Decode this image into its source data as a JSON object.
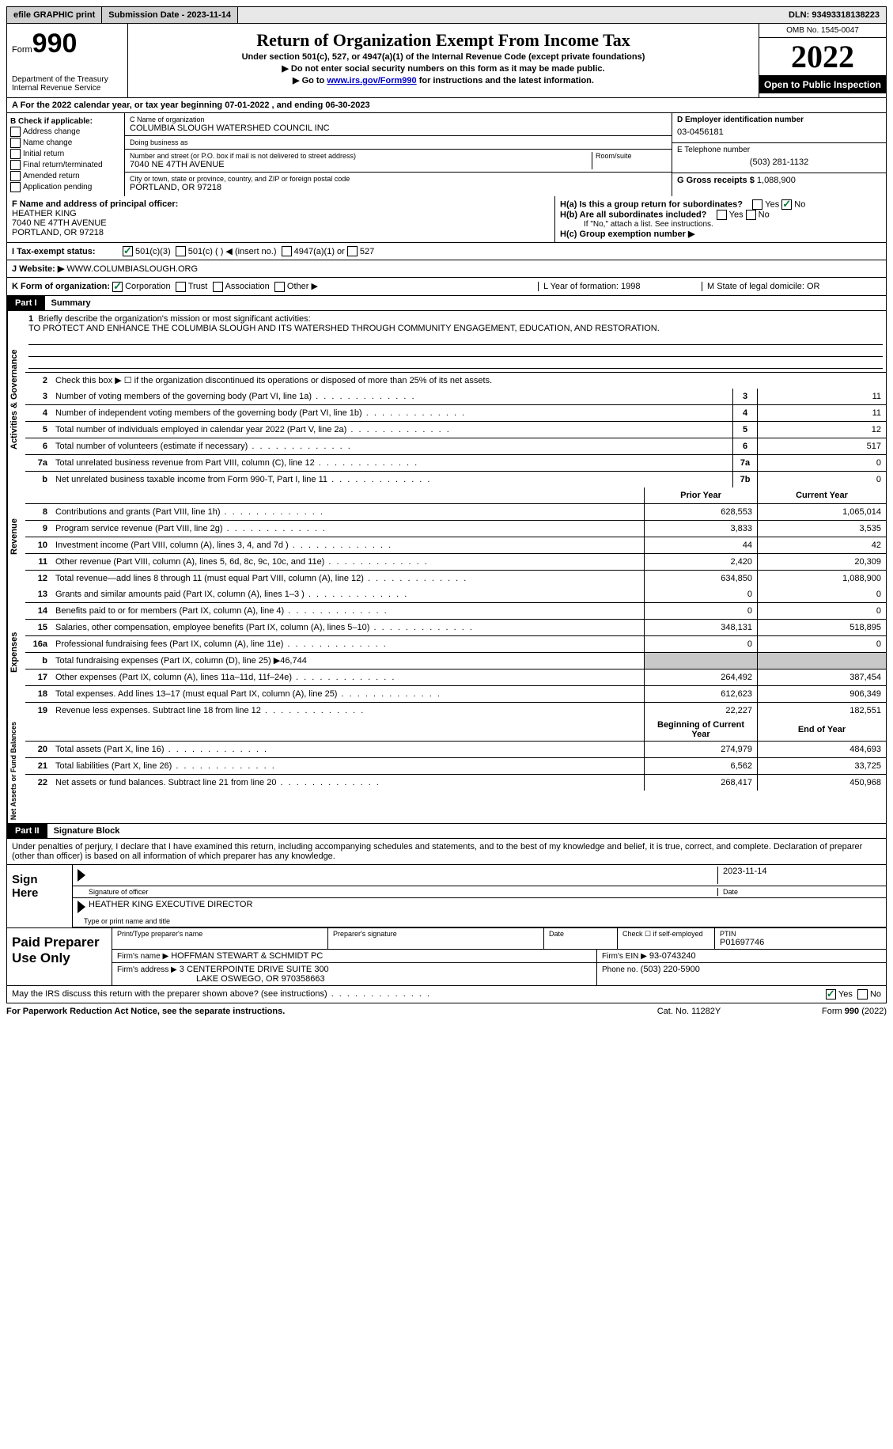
{
  "top": {
    "efile": "efile GRAPHIC print",
    "submission": "Submission Date - 2023-11-14",
    "dln": "DLN: 93493318138223"
  },
  "header": {
    "form": "Form",
    "number": "990",
    "dept": "Department of the Treasury\nInternal Revenue Service",
    "title": "Return of Organization Exempt From Income Tax",
    "subtitle": "Under section 501(c), 527, or 4947(a)(1) of the Internal Revenue Code (except private foundations)",
    "line1": "▶ Do not enter social security numbers on this form as it may be made public.",
    "line2_pre": "▶ Go to ",
    "line2_link": "www.irs.gov/Form990",
    "line2_post": " for instructions and the latest information.",
    "omb": "OMB No. 1545-0047",
    "year": "2022",
    "open": "Open to Public Inspection"
  },
  "lineA": "A  For the 2022 calendar year, or tax year beginning 07-01-2022    , and ending 06-30-2023",
  "b": {
    "label": "B Check if applicable:",
    "opts": [
      "Address change",
      "Name change",
      "Initial return",
      "Final return/terminated",
      "Amended return",
      "Application pending"
    ]
  },
  "c": {
    "name_label": "C Name of organization",
    "name": "COLUMBIA SLOUGH WATERSHED COUNCIL INC",
    "dba_label": "Doing business as",
    "dba": "",
    "street_label": "Number and street (or P.O. box if mail is not delivered to street address)",
    "room_label": "Room/suite",
    "street": "7040 NE 47TH AVENUE",
    "city_label": "City or town, state or province, country, and ZIP or foreign postal code",
    "city": "PORTLAND, OR  97218"
  },
  "d": {
    "ein_label": "D Employer identification number",
    "ein": "03-0456181",
    "phone_label": "E Telephone number",
    "phone": "(503) 281-1132",
    "gross_label": "G Gross receipts $",
    "gross": "1,088,900"
  },
  "f": {
    "label": "F Name and address of principal officer:",
    "name": "HEATHER KING",
    "addr1": "7040 NE 47TH AVENUE",
    "addr2": "PORTLAND, OR  97218"
  },
  "h": {
    "a": "H(a)  Is this a group return for subordinates?",
    "a_no": true,
    "b": "H(b)  Are all subordinates included?",
    "b_note": "If \"No,\" attach a list. See instructions.",
    "c": "H(c)  Group exemption number ▶"
  },
  "i": {
    "label": "I   Tax-exempt status:",
    "c3": "501(c)(3)",
    "c": "501(c) (  ) ◀ (insert no.)",
    "a1": "4947(a)(1) or",
    "s527": "527"
  },
  "j": {
    "label": "J   Website: ▶",
    "val": "WWW.COLUMBIASLOUGH.ORG"
  },
  "k": {
    "label": "K Form of organization:",
    "corp": "Corporation",
    "trust": "Trust",
    "assoc": "Association",
    "other": "Other ▶",
    "l": "L Year of formation: 1998",
    "m": "M State of legal domicile: OR"
  },
  "part1": {
    "header": "Part I",
    "title": "Summary",
    "q1": "Briefly describe the organization's mission or most significant activities:",
    "mission": "TO PROTECT AND ENHANCE THE COLUMBIA SLOUGH AND ITS WATERSHED THROUGH COMMUNITY ENGAGEMENT, EDUCATION, AND RESTORATION.",
    "q2": "Check this box ▶ ☐ if the organization discontinued its operations or disposed of more than 25% of its net assets.",
    "lines_single": [
      {
        "n": "3",
        "d": "Number of voting members of the governing body (Part VI, line 1a)",
        "box": "3",
        "v": "11"
      },
      {
        "n": "4",
        "d": "Number of independent voting members of the governing body (Part VI, line 1b)",
        "box": "4",
        "v": "11"
      },
      {
        "n": "5",
        "d": "Total number of individuals employed in calendar year 2022 (Part V, line 2a)",
        "box": "5",
        "v": "12"
      },
      {
        "n": "6",
        "d": "Total number of volunteers (estimate if necessary)",
        "box": "6",
        "v": "517"
      },
      {
        "n": "7a",
        "d": "Total unrelated business revenue from Part VIII, column (C), line 12",
        "box": "7a",
        "v": "0"
      },
      {
        "n": "b",
        "d": "Net unrelated business taxable income from Form 990-T, Part I, line 11",
        "box": "7b",
        "v": "0"
      }
    ],
    "col_prior": "Prior Year",
    "col_current": "Current Year",
    "revenue": [
      {
        "n": "8",
        "d": "Contributions and grants (Part VIII, line 1h)",
        "p": "628,553",
        "c": "1,065,014"
      },
      {
        "n": "9",
        "d": "Program service revenue (Part VIII, line 2g)",
        "p": "3,833",
        "c": "3,535"
      },
      {
        "n": "10",
        "d": "Investment income (Part VIII, column (A), lines 3, 4, and 7d )",
        "p": "44",
        "c": "42"
      },
      {
        "n": "11",
        "d": "Other revenue (Part VIII, column (A), lines 5, 6d, 8c, 9c, 10c, and 11e)",
        "p": "2,420",
        "c": "20,309"
      },
      {
        "n": "12",
        "d": "Total revenue—add lines 8 through 11 (must equal Part VIII, column (A), line 12)",
        "p": "634,850",
        "c": "1,088,900"
      }
    ],
    "expenses": [
      {
        "n": "13",
        "d": "Grants and similar amounts paid (Part IX, column (A), lines 1–3 )",
        "p": "0",
        "c": "0"
      },
      {
        "n": "14",
        "d": "Benefits paid to or for members (Part IX, column (A), line 4)",
        "p": "0",
        "c": "0"
      },
      {
        "n": "15",
        "d": "Salaries, other compensation, employee benefits (Part IX, column (A), lines 5–10)",
        "p": "348,131",
        "c": "518,895"
      },
      {
        "n": "16a",
        "d": "Professional fundraising fees (Part IX, column (A), line 11e)",
        "p": "0",
        "c": "0"
      },
      {
        "n": "b",
        "d": "Total fundraising expenses (Part IX, column (D), line 25) ▶46,744",
        "p": "",
        "c": "",
        "gray": true
      },
      {
        "n": "17",
        "d": "Other expenses (Part IX, column (A), lines 11a–11d, 11f–24e)",
        "p": "264,492",
        "c": "387,454"
      },
      {
        "n": "18",
        "d": "Total expenses. Add lines 13–17 (must equal Part IX, column (A), line 25)",
        "p": "612,623",
        "c": "906,349"
      },
      {
        "n": "19",
        "d": "Revenue less expenses. Subtract line 18 from line 12",
        "p": "22,227",
        "c": "182,551"
      }
    ],
    "col_begin": "Beginning of Current Year",
    "col_end": "End of Year",
    "netassets": [
      {
        "n": "20",
        "d": "Total assets (Part X, line 16)",
        "p": "274,979",
        "c": "484,693"
      },
      {
        "n": "21",
        "d": "Total liabilities (Part X, line 26)",
        "p": "6,562",
        "c": "33,725"
      },
      {
        "n": "22",
        "d": "Net assets or fund balances. Subtract line 21 from line 20",
        "p": "268,417",
        "c": "450,968"
      }
    ]
  },
  "part2": {
    "header": "Part II",
    "title": "Signature Block",
    "declaration": "Under penalties of perjury, I declare that I have examined this return, including accompanying schedules and statements, and to the best of my knowledge and belief, it is true, correct, and complete. Declaration of preparer (other than officer) is based on all information of which preparer has any knowledge.",
    "sign_here": "Sign Here",
    "sig_officer": "Signature of officer",
    "sig_date": "2023-11-14",
    "date_label": "Date",
    "officer_name": "HEATHER KING  EXECUTIVE DIRECTOR",
    "type_label": "Type or print name and title",
    "paid_label": "Paid Preparer Use Only",
    "print_name_label": "Print/Type preparer's name",
    "prep_sig_label": "Preparer's signature",
    "prep_date_label": "Date",
    "check_self": "Check ☐ if self-employed",
    "ptin_label": "PTIN",
    "ptin": "P01697746",
    "firm_name_label": "Firm's name    ▶",
    "firm_name": "HOFFMAN STEWART & SCHMIDT PC",
    "firm_ein_label": "Firm's EIN ▶",
    "firm_ein": "93-0743240",
    "firm_addr_label": "Firm's address ▶",
    "firm_addr1": "3 CENTERPOINTE DRIVE SUITE 300",
    "firm_addr2": "LAKE OSWEGO, OR  970358663",
    "phone_label": "Phone no.",
    "phone": "(503) 220-5900",
    "discuss": "May the IRS discuss this return with the preparer shown above? (see instructions)",
    "yes": true
  },
  "footer": {
    "left": "For Paperwork Reduction Act Notice, see the separate instructions.",
    "mid": "Cat. No. 11282Y",
    "right": "Form 990 (2022)"
  }
}
